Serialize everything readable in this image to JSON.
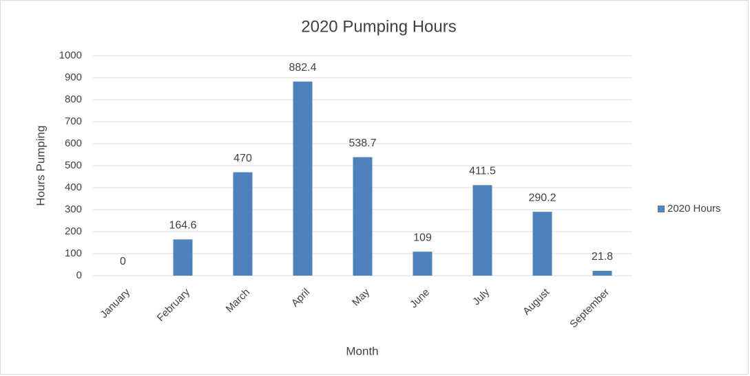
{
  "chart_data": {
    "type": "bar",
    "title": "2020 Pumping Hours",
    "x_label": "Month",
    "y_label": "Hours Pumping",
    "categories": [
      "January",
      "February",
      "March",
      "April",
      "May",
      "June",
      "July",
      "August",
      "September"
    ],
    "series": [
      {
        "name": "2020 Hours",
        "color": "#4f81bd",
        "values": [
          0,
          164.6,
          470,
          882.4,
          538.7,
          109,
          411.5,
          290.2,
          21.8
        ]
      }
    ],
    "ylim": [
      0,
      1000
    ],
    "yticks": [
      0,
      100,
      200,
      300,
      400,
      500,
      600,
      700,
      800,
      900,
      1000
    ],
    "grid": true,
    "legend": "right",
    "data_labels": true
  }
}
